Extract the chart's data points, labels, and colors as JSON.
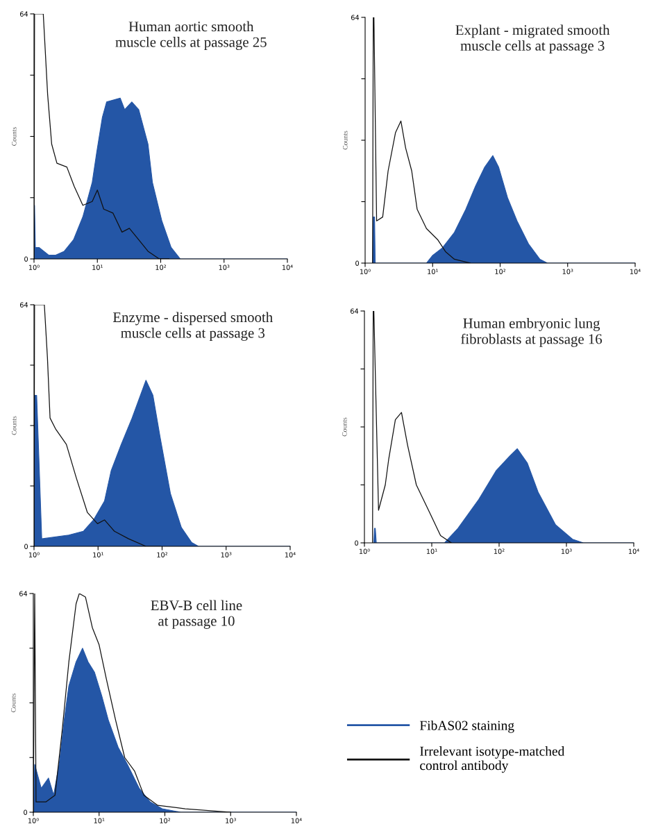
{
  "chart_data": [
    {
      "type": "area",
      "title": "Human aortic smooth\nmuscle cells at passage 25",
      "ylabel": "Counts",
      "log": "x",
      "grid": false,
      "xlim": [
        1,
        10000
      ],
      "ylim": [
        0,
        64
      ],
      "xticks": [
        {
          "value": 1,
          "label": "10⁰"
        },
        {
          "value": 10,
          "label": "10¹"
        },
        {
          "value": 100,
          "label": "10²"
        },
        {
          "value": 1000,
          "label": "10³"
        },
        {
          "value": 10000,
          "label": "10⁴"
        }
      ],
      "yticks": [
        0,
        {
          "value": 16,
          "label": null
        },
        {
          "value": 32,
          "label": null
        },
        {
          "value": 48,
          "label": null
        },
        64
      ],
      "series": [
        {
          "color": "#2456a6",
          "x": [
            1,
            1.02,
            1.05,
            1.2,
            1.7,
            2.2,
            3.0,
            4.2,
            5.9,
            8.3,
            9.8,
            12,
            14,
            23,
            27,
            35,
            45,
            63,
            74,
            104,
            146,
            204,
            280,
            10000
          ],
          "values": [
            0,
            14,
            3,
            3,
            1,
            1,
            2,
            5,
            11,
            20,
            28,
            37,
            41,
            42,
            39,
            41,
            39,
            30,
            20,
            10,
            3,
            0,
            0,
            0
          ]
        },
        {
          "type": "line",
          "color": "#111111",
          "x": [
            1,
            1.02,
            1.4,
            1.64,
            1.9,
            2.3,
            3.3,
            4.3,
            5.9,
            8.3,
            10,
            12.6,
            17.6,
            24.5,
            32,
            45,
            63,
            95,
            135
          ],
          "values": [
            0,
            64,
            64,
            43,
            30,
            25,
            24,
            19,
            14,
            15,
            18,
            13,
            12,
            7,
            8,
            5,
            2,
            0,
            0
          ]
        }
      ]
    },
    {
      "type": "area",
      "title": "Explant - migrated smooth\nmuscle cells at passage 3",
      "ylabel": "Counts",
      "log": "x",
      "grid": false,
      "xlim": [
        1,
        10000
      ],
      "ylim": [
        0,
        64
      ],
      "xticks": [
        {
          "value": 1,
          "label": "10⁰"
        },
        {
          "value": 10,
          "label": "10¹"
        },
        {
          "value": 100,
          "label": "10²"
        },
        {
          "value": 1000,
          "label": "10³"
        },
        {
          "value": 10000,
          "label": "10⁴"
        }
      ],
      "yticks": [
        0,
        {
          "value": 16,
          "label": null
        },
        {
          "value": 32,
          "label": null
        },
        {
          "value": 48,
          "label": null
        },
        64
      ],
      "series": [
        {
          "color": "#2456a6",
          "x": [
            1.29,
            1.32,
            1.38,
            1.41,
            4.0,
            8.1,
            10,
            14,
            21,
            31,
            43,
            59,
            78,
            95,
            129,
            178,
            263,
            389,
            501,
            10000
          ],
          "values": [
            0,
            12,
            12,
            0,
            0,
            0,
            2,
            4,
            8,
            14,
            20,
            25,
            28,
            25,
            17,
            11,
            5,
            1,
            0,
            0
          ]
        },
        {
          "type": "line",
          "color": "#111111",
          "x": [
            1.29,
            1.32,
            1.35,
            1.48,
            1.82,
            2.19,
            2.82,
            3.39,
            3.98,
            4.9,
            5.9,
            8.1,
            12,
            15.5,
            21,
            36
          ],
          "values": [
            0,
            64,
            64,
            11,
            12,
            24,
            34,
            37,
            30,
            24,
            14,
            9,
            6,
            3,
            1,
            0
          ]
        }
      ]
    },
    {
      "type": "area",
      "title": "Enzyme - dispersed smooth\nmuscle cells at passage 3",
      "ylabel": "Counts",
      "log": "x",
      "grid": false,
      "xlim": [
        1,
        10000
      ],
      "ylim": [
        0,
        64
      ],
      "xticks": [
        {
          "value": 1,
          "label": "10⁰"
        },
        {
          "value": 10,
          "label": "10¹"
        },
        {
          "value": 100,
          "label": "10²"
        },
        {
          "value": 1000,
          "label": "10³"
        },
        {
          "value": 10000,
          "label": "10⁴"
        }
      ],
      "yticks": [
        0,
        {
          "value": 16,
          "label": null
        },
        {
          "value": 32,
          "label": null
        },
        {
          "value": 48,
          "label": null
        },
        64
      ],
      "series": [
        {
          "color": "#2456a6",
          "x": [
            1,
            1.02,
            1.1,
            1.32,
            3.5,
            5.9,
            8.5,
            12.6,
            16,
            23,
            34,
            56,
            72,
            93,
            135,
            200,
            290,
            370,
            10000
          ],
          "values": [
            0,
            40,
            40,
            2,
            3,
            4,
            7,
            12,
            20,
            27,
            34,
            44,
            40,
            29,
            14,
            5,
            1,
            0,
            0
          ]
        },
        {
          "type": "line",
          "color": "#111111",
          "x": [
            1,
            1.02,
            1.45,
            1.62,
            1.78,
            2.19,
            3.2,
            4.6,
            6.8,
            9.8,
            12.6,
            18,
            30,
            56,
            93
          ],
          "values": [
            0,
            64,
            64,
            50,
            34,
            31,
            27,
            18,
            9,
            6,
            7,
            4,
            2,
            0,
            0
          ]
        }
      ]
    },
    {
      "type": "area",
      "title": "Human embryonic lung\nfibroblasts at passage 16",
      "ylabel": "Counts",
      "log": "x",
      "grid": false,
      "xlim": [
        1,
        10000
      ],
      "ylim": [
        0,
        64
      ],
      "xticks": [
        {
          "value": 1,
          "label": "10⁰"
        },
        {
          "value": 10,
          "label": "10¹"
        },
        {
          "value": 100,
          "label": "10²"
        },
        {
          "value": 1000,
          "label": "10³"
        },
        {
          "value": 10000,
          "label": "10⁴"
        }
      ],
      "yticks": [
        0,
        {
          "value": 16,
          "label": null
        },
        {
          "value": 32,
          "label": null
        },
        {
          "value": 48,
          "label": null
        },
        64
      ],
      "series": [
        {
          "color": "#2456a6",
          "x": [
            1.38,
            1.41,
            1.45,
            1.5,
            15.5,
            24.5,
            50,
            91,
            145,
            186,
            263,
            380,
            690,
            1230,
            1780,
            10000
          ],
          "values": [
            0,
            4,
            4,
            0,
            0,
            4,
            12,
            20,
            24,
            26,
            22,
            14,
            5,
            1,
            0,
            0
          ]
        },
        {
          "type": "line",
          "color": "#111111",
          "x": [
            1.32,
            1.35,
            1.38,
            1.62,
            2.04,
            2.29,
            2.88,
            3.55,
            4.37,
            5.9,
            9.5,
            13.5,
            19.5
          ],
          "values": [
            0,
            64,
            64,
            9,
            16,
            23,
            34,
            36,
            27,
            16,
            8,
            2,
            0
          ]
        }
      ]
    },
    {
      "type": "area",
      "title": "EBV-B cell line\nat passage 10",
      "ylabel": "Counts",
      "log": "x",
      "grid": false,
      "legend": "right",
      "xlim": [
        1,
        10000
      ],
      "ylim": [
        0,
        64
      ],
      "xticks": [
        {
          "value": 1,
          "label": "10⁰"
        },
        {
          "value": 10,
          "label": "10¹"
        },
        {
          "value": 100,
          "label": "10²"
        },
        {
          "value": 1000,
          "label": "10³"
        },
        {
          "value": 10000,
          "label": "10⁴"
        }
      ],
      "yticks": [
        0,
        {
          "value": 16,
          "label": null
        },
        {
          "value": 32,
          "label": null
        },
        {
          "value": 48,
          "label": null
        },
        64
      ],
      "series": [
        {
          "name": "FibAS02 staining",
          "color": "#2456a6",
          "x": [
            1,
            1.05,
            1.32,
            1.7,
            2.04,
            2.51,
            2.95,
            3.47,
            4.47,
            5.6,
            6.8,
            8.5,
            11,
            13.8,
            19.5,
            26.9,
            40.7,
            60,
            91,
            174,
            10000
          ],
          "values": [
            0,
            14,
            7,
            10,
            5,
            15,
            27,
            37,
            44,
            48,
            44,
            41,
            34,
            27,
            19,
            14,
            7,
            3,
            1,
            0,
            0
          ]
        },
        {
          "type": "line",
          "name": "Irrelevant isotype-matched\ncontrol antibody",
          "color": "#111111",
          "x": [
            1,
            1.05,
            1.1,
            1.55,
            2.14,
            2.75,
            3.47,
            4.47,
            5.0,
            6.2,
            7.9,
            10,
            12.9,
            17.8,
            24.5,
            34.7,
            47.9,
            78,
            204,
            1000
          ],
          "values": [
            0,
            64,
            3,
            3,
            5,
            24,
            44,
            61,
            64,
            63,
            54,
            49,
            39,
            27,
            16,
            12,
            5,
            2,
            1,
            0
          ]
        }
      ]
    }
  ]
}
